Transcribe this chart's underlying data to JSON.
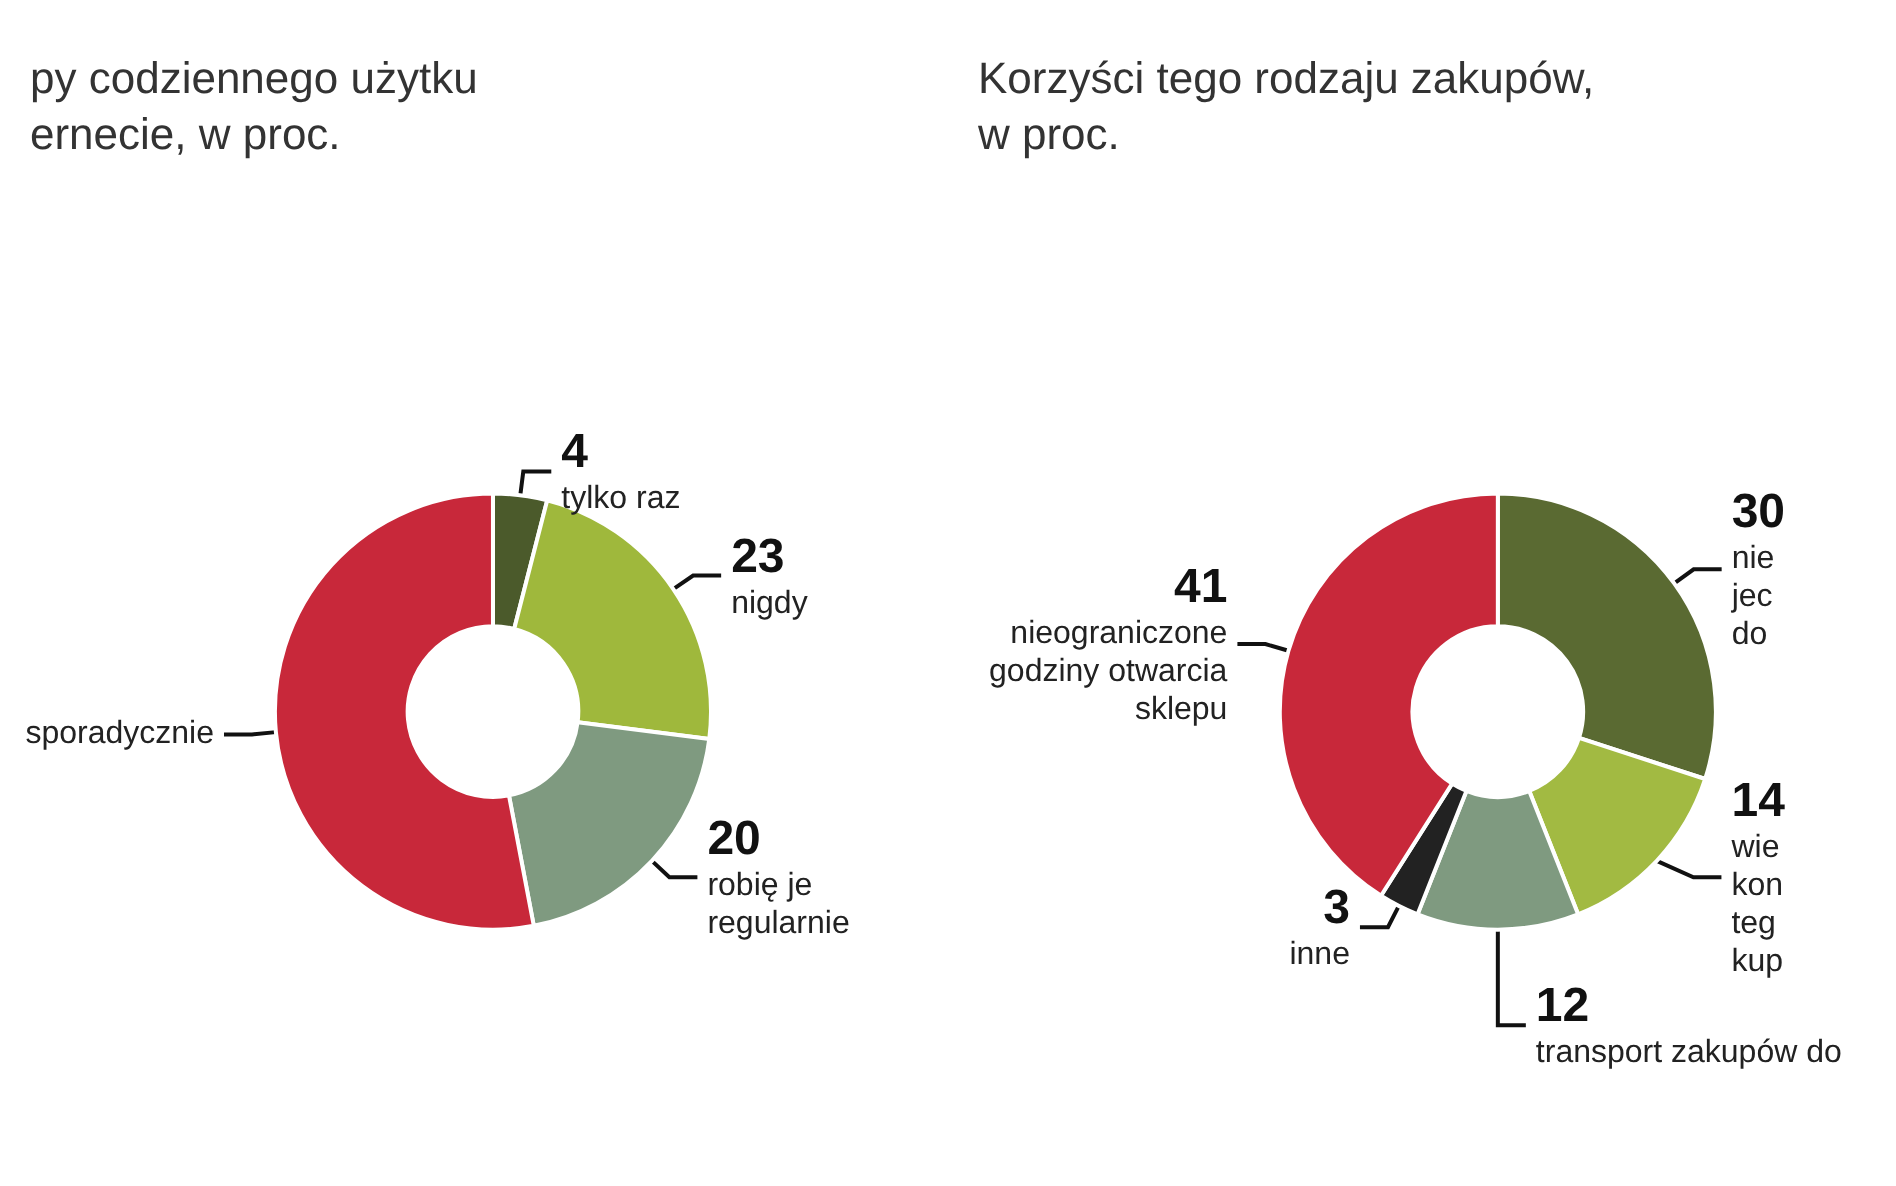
{
  "chart_data": [
    {
      "type": "donut",
      "title": "py codziennego użytku\nernecie, w proc.",
      "categories": [
        "tylko raz",
        "nigdy",
        "robię je\nregularnie",
        "sporadycznie"
      ],
      "values": [
        4,
        23,
        20,
        53
      ],
      "colors": [
        "#4b5a2b",
        "#9fb83c",
        "#7f9a80",
        "#c8283a"
      ],
      "value_labels": [
        "4",
        "23",
        "20",
        null
      ]
    },
    {
      "type": "donut",
      "title": "Korzyści tego rodzaju zakupów,\nw proc.",
      "categories": [
        "nie\njec\ndo",
        "wie\nkon\nteg\nkup",
        "transport zakupów do",
        "inne",
        "nieograniczone\ngodziny otwarcia\nsklepu"
      ],
      "values": [
        30,
        14,
        12,
        3,
        41
      ],
      "colors": [
        "#5a6a32",
        "#a2ba42",
        "#7f9a80",
        "#222222",
        "#c8283a"
      ],
      "value_labels": [
        "30",
        "14",
        "12",
        "3",
        "41"
      ]
    }
  ]
}
